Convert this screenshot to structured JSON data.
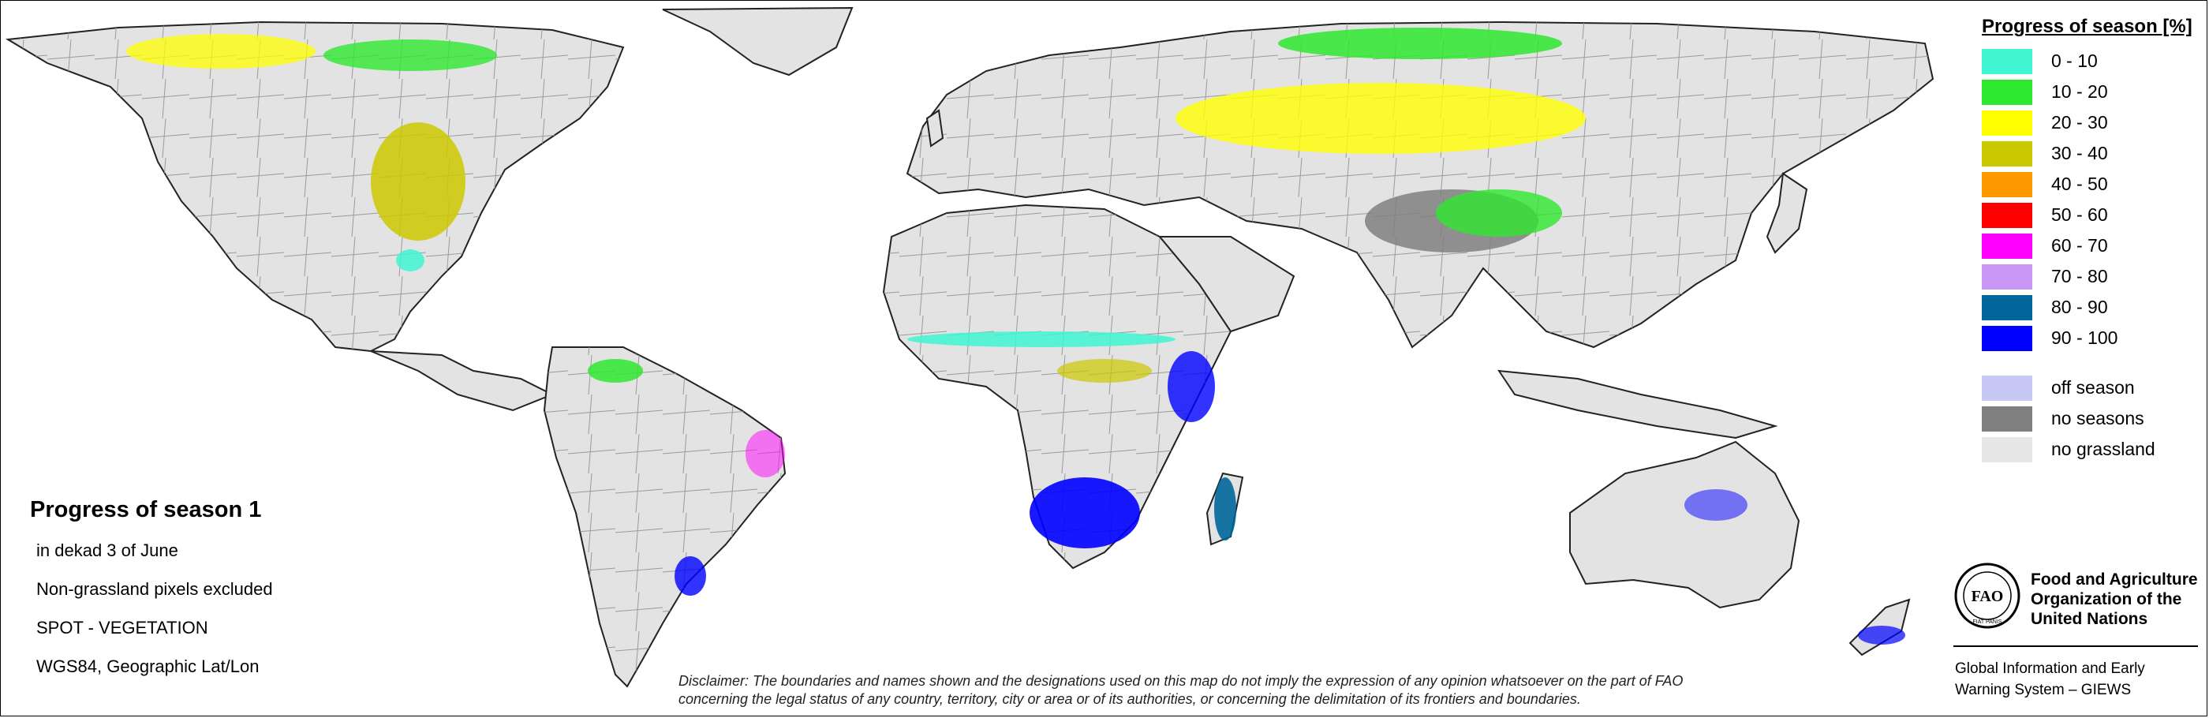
{
  "legend": {
    "title": "Progress of season [%]",
    "classes": [
      {
        "label": "0 - 10",
        "color": "#40F5D2"
      },
      {
        "label": "10 - 20",
        "color": "#2EE82E"
      },
      {
        "label": "20 - 30",
        "color": "#FFFF00"
      },
      {
        "label": "30 - 40",
        "color": "#CCC800"
      },
      {
        "label": "40 - 50",
        "color": "#FF9900"
      },
      {
        "label": "50 - 60",
        "color": "#FF0000"
      },
      {
        "label": "60 - 70",
        "color": "#FF00FF"
      },
      {
        "label": "70 - 80",
        "color": "#C896F5"
      },
      {
        "label": "80 - 90",
        "color": "#006699"
      },
      {
        "label": "90 - 100",
        "color": "#0000FF"
      }
    ],
    "extra_classes": [
      {
        "label": "off season",
        "color": "#C8C8F5"
      },
      {
        "label": "no seasons",
        "color": "#808080"
      },
      {
        "label": "no grassland",
        "color": "#E6E6E6"
      }
    ]
  },
  "info": {
    "title": "Progress of season 1",
    "lines": [
      "in dekad 3 of June",
      "Non-grassland pixels excluded",
      "SPOT - VEGETATION",
      "WGS84, Geographic Lat/Lon"
    ]
  },
  "fao": {
    "logo_text": "FAO",
    "logo_motto": "FIAT PANIS",
    "org_lines": [
      "Food and Agriculture",
      "Organization of the",
      "United Nations"
    ],
    "system_lines": [
      "Global Information and Early",
      "Warning System – GIEWS"
    ]
  },
  "disclaimer": {
    "lines": [
      "Disclaimer: The boundaries and names shown and the designations used on this map do not imply the expression of any opinion whatsoever on the part of FAO",
      "concerning the legal status of any country, territory, city or area or of its authorities, or concerning the delimitation of its frontiers and boundaries."
    ]
  },
  "map": {
    "land_color": "#E3E3E3",
    "border_color": "#8C8C8C",
    "coast_color": "#222222",
    "regions": [
      {
        "name": "central-asia-steppe",
        "class": "20 - 30",
        "color": "#FFFF00"
      },
      {
        "name": "siberia-north",
        "class": "10 - 20",
        "color": "#2EE82E"
      },
      {
        "name": "tibet-plateau",
        "class": "no seasons",
        "color": "#808080"
      },
      {
        "name": "north-america-plains",
        "class": "30 - 40",
        "color": "#CCC800"
      },
      {
        "name": "canada-north",
        "class": "10 - 20",
        "color": "#2EE82E"
      },
      {
        "name": "sahel",
        "class": "0 - 10",
        "color": "#40F5D2"
      },
      {
        "name": "southern-africa",
        "class": "90 - 100",
        "color": "#0000FF"
      },
      {
        "name": "madagascar",
        "class": "80 - 90",
        "color": "#006699"
      },
      {
        "name": "brazil-east",
        "class": "60 - 70",
        "color": "#FF00FF"
      },
      {
        "name": "australia-east",
        "class": "90 - 100",
        "color": "#0000FF"
      }
    ]
  }
}
